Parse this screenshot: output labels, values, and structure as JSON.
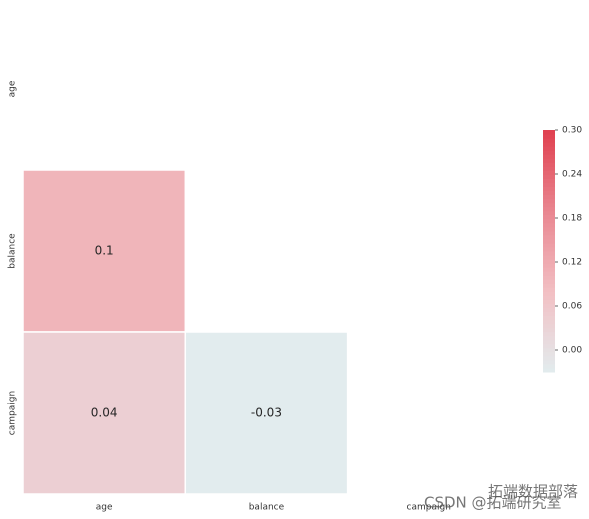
{
  "chart_data": {
    "type": "heatmap",
    "x_categories": [
      "age",
      "balance",
      "campaign"
    ],
    "y_categories": [
      "age",
      "balance",
      "campaign"
    ],
    "values": [
      [
        null,
        null,
        null
      ],
      [
        0.1,
        null,
        null
      ],
      [
        0.04,
        -0.03,
        null
      ]
    ],
    "clim": [
      -0.03,
      0.3
    ],
    "colorbar_ticks": [
      {
        "value": 0,
        "label": "0.00"
      },
      0.06,
      0.12,
      0.18,
      0.24,
      {
        "value": 0.3,
        "label": "0.30"
      }
    ],
    "colormap": [
      "#e2ecee",
      "#f2bfc3",
      "#e98690",
      "#e0404f"
    ],
    "watermarks": [
      "拓端数据部落",
      "CSDN @拓端研究室"
    ]
  }
}
